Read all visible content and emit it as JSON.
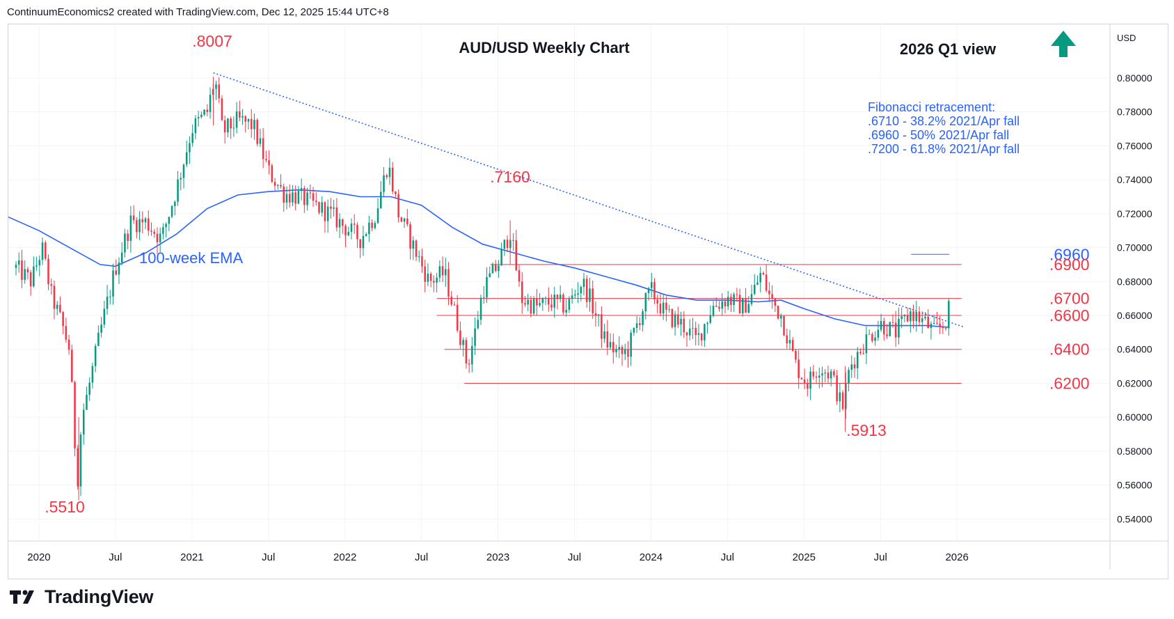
{
  "header": {
    "credit": "ContinuumEconomics2 created with TradingView.com, Dec 12, 2025 15:44 UTC+8"
  },
  "footer": {
    "brand": "TradingView"
  },
  "colors": {
    "up": "#089981",
    "down": "#f23645",
    "ema": "#2962ff",
    "level_line": "#f23645",
    "annotation": "#f23645",
    "fib_text": "#2962ff",
    "arrow": "#089981",
    "grid": "#f0f3fa"
  },
  "icons": {
    "view_arrow": "arrow-up-icon",
    "logo": "tradingview-logo-icon"
  },
  "chart_data": {
    "type": "candlestick",
    "title": "AUD/USD Weekly Chart",
    "subtitle": "2026 Q1 view",
    "currency": "USD",
    "y_ticks": [
      "0.80000",
      "0.78000",
      "0.76000",
      "0.74000",
      "0.72000",
      "0.70000",
      "0.68000",
      "0.66000",
      "0.64000",
      "0.62000",
      "0.60000",
      "0.58000",
      "0.56000",
      "0.54000"
    ],
    "ylim": [
      0.527,
      0.832
    ],
    "x_ticks": [
      {
        "label": "2020",
        "t": 2020.0
      },
      {
        "label": "Jul",
        "t": 2020.5
      },
      {
        "label": "2021",
        "t": 2021.0
      },
      {
        "label": "Jul",
        "t": 2021.5
      },
      {
        "label": "2022",
        "t": 2022.0
      },
      {
        "label": "Jul",
        "t": 2022.5
      },
      {
        "label": "2023",
        "t": 2023.0
      },
      {
        "label": "Jul",
        "t": 2023.5
      },
      {
        "label": "2024",
        "t": 2024.0
      },
      {
        "label": "Jul",
        "t": 2024.5
      },
      {
        "label": "2025",
        "t": 2025.0
      },
      {
        "label": "Jul",
        "t": 2025.5
      },
      {
        "label": "2026",
        "t": 2026.0
      }
    ],
    "xlim": [
      2019.8,
      2027.0
    ],
    "price_path": [
      [
        2019.85,
        0.688
      ],
      [
        2019.95,
        0.68
      ],
      [
        2020.02,
        0.7
      ],
      [
        2020.08,
        0.672
      ],
      [
        2020.15,
        0.655
      ],
      [
        2020.2,
        0.64
      ],
      [
        2020.25,
        0.56
      ],
      [
        2020.28,
        0.6
      ],
      [
        2020.32,
        0.615
      ],
      [
        2020.4,
        0.65
      ],
      [
        2020.5,
        0.688
      ],
      [
        2020.6,
        0.715
      ],
      [
        2020.7,
        0.715
      ],
      [
        2020.8,
        0.705
      ],
      [
        2020.9,
        0.735
      ],
      [
        2021.0,
        0.77
      ],
      [
        2021.1,
        0.78
      ],
      [
        2021.15,
        0.8
      ],
      [
        2021.2,
        0.768
      ],
      [
        2021.3,
        0.775
      ],
      [
        2021.4,
        0.772
      ],
      [
        2021.5,
        0.745
      ],
      [
        2021.6,
        0.732
      ],
      [
        2021.7,
        0.73
      ],
      [
        2021.8,
        0.725
      ],
      [
        2021.9,
        0.72
      ],
      [
        2022.0,
        0.712
      ],
      [
        2022.1,
        0.705
      ],
      [
        2022.2,
        0.72
      ],
      [
        2022.28,
        0.75
      ],
      [
        2022.35,
        0.72
      ],
      [
        2022.45,
        0.7
      ],
      [
        2022.55,
        0.68
      ],
      [
        2022.65,
        0.685
      ],
      [
        2022.75,
        0.65
      ],
      [
        2022.8,
        0.63
      ],
      [
        2022.85,
        0.65
      ],
      [
        2022.9,
        0.675
      ],
      [
        2023.0,
        0.69
      ],
      [
        2023.08,
        0.71
      ],
      [
        2023.15,
        0.67
      ],
      [
        2023.25,
        0.665
      ],
      [
        2023.35,
        0.668
      ],
      [
        2023.45,
        0.665
      ],
      [
        2023.55,
        0.68
      ],
      [
        2023.6,
        0.67
      ],
      [
        2023.7,
        0.645
      ],
      [
        2023.8,
        0.636
      ],
      [
        2023.85,
        0.64
      ],
      [
        2023.95,
        0.665
      ],
      [
        2024.0,
        0.675
      ],
      [
        2024.1,
        0.66
      ],
      [
        2024.2,
        0.655
      ],
      [
        2024.3,
        0.645
      ],
      [
        2024.4,
        0.665
      ],
      [
        2024.5,
        0.67
      ],
      [
        2024.6,
        0.665
      ],
      [
        2024.65,
        0.67
      ],
      [
        2024.72,
        0.685
      ],
      [
        2024.78,
        0.67
      ],
      [
        2024.85,
        0.66
      ],
      [
        2024.95,
        0.63
      ],
      [
        2025.02,
        0.62
      ],
      [
        2025.1,
        0.63
      ],
      [
        2025.18,
        0.625
      ],
      [
        2025.25,
        0.605
      ],
      [
        2025.3,
        0.63
      ],
      [
        2025.4,
        0.645
      ],
      [
        2025.5,
        0.655
      ],
      [
        2025.6,
        0.65
      ],
      [
        2025.7,
        0.662
      ],
      [
        2025.8,
        0.655
      ],
      [
        2025.85,
        0.65
      ],
      [
        2025.92,
        0.655
      ],
      [
        2025.95,
        0.664
      ]
    ],
    "annotations": [
      {
        "label": ".8007",
        "t": 2021.14,
        "price": 0.8007
      },
      {
        "label": ".7160",
        "t": 2023.08,
        "price": 0.716
      },
      {
        "label": ".5913",
        "t": 2025.27,
        "price": 0.5913
      },
      {
        "label": ".5510",
        "t": 2020.26,
        "price": 0.551
      }
    ],
    "levels": [
      {
        "label": ".6960",
        "value": 0.696,
        "from": 2025.7,
        "color": "#2962ff"
      },
      {
        "label": ".6900",
        "value": 0.69,
        "from": 2022.95,
        "color": "#f23645"
      },
      {
        "label": ".6700",
        "value": 0.67,
        "from": 2022.6,
        "color": "#f23645"
      },
      {
        "label": ".6600",
        "value": 0.66,
        "from": 2022.6,
        "color": "#f23645"
      },
      {
        "label": ".6400",
        "value": 0.64,
        "from": 2022.65,
        "color": "#f23645"
      },
      {
        "label": ".6200",
        "value": 0.62,
        "from": 2022.78,
        "color": "#f23645"
      }
    ],
    "trendline": {
      "from": [
        2021.14,
        0.803
      ],
      "to": [
        2026.05,
        0.653
      ]
    },
    "ema": {
      "label": "100-week EMA",
      "points": [
        [
          2019.8,
          0.718
        ],
        [
          2020.0,
          0.71
        ],
        [
          2020.2,
          0.7
        ],
        [
          2020.4,
          0.69
        ],
        [
          2020.5,
          0.689
        ],
        [
          2020.7,
          0.697
        ],
        [
          2020.9,
          0.708
        ],
        [
          2021.1,
          0.723
        ],
        [
          2021.3,
          0.731
        ],
        [
          2021.5,
          0.733
        ],
        [
          2021.7,
          0.734
        ],
        [
          2021.9,
          0.733
        ],
        [
          2022.1,
          0.73
        ],
        [
          2022.3,
          0.73
        ],
        [
          2022.5,
          0.725
        ],
        [
          2022.7,
          0.712
        ],
        [
          2022.9,
          0.702
        ],
        [
          2023.1,
          0.697
        ],
        [
          2023.3,
          0.692
        ],
        [
          2023.5,
          0.688
        ],
        [
          2023.7,
          0.683
        ],
        [
          2023.9,
          0.678
        ],
        [
          2024.1,
          0.672
        ],
        [
          2024.3,
          0.669
        ],
        [
          2024.5,
          0.669
        ],
        [
          2024.7,
          0.668
        ],
        [
          2024.85,
          0.669
        ],
        [
          2025.0,
          0.664
        ],
        [
          2025.2,
          0.658
        ],
        [
          2025.4,
          0.654
        ],
        [
          2025.6,
          0.654
        ],
        [
          2025.8,
          0.654
        ],
        [
          2025.95,
          0.653
        ]
      ]
    },
    "fib": {
      "heading": "Fibonacci retracement:",
      "lines": [
        ".6710 - 38.2% 2021/Apr fall",
        ".6960 - 50% 2021/Apr fall",
        ".7200 - 61.8% 2021/Apr fall"
      ]
    }
  }
}
